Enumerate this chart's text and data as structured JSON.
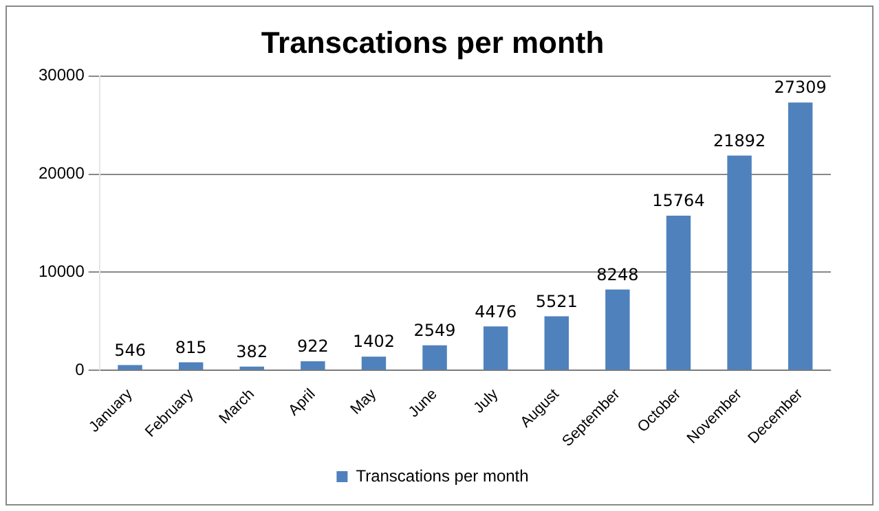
{
  "chart_data": {
    "type": "bar",
    "title": "Transcations per month",
    "categories": [
      "January",
      "February",
      "March",
      "April",
      "May",
      "June",
      "July",
      "August",
      "September",
      "October",
      "November",
      "December"
    ],
    "series": [
      {
        "name": "Transcations per month",
        "color": "#4f81bd",
        "values": [
          546,
          815,
          382,
          922,
          1402,
          2549,
          4476,
          5521,
          8248,
          15764,
          21892,
          27309
        ]
      }
    ],
    "ylim": [
      0,
      30000
    ],
    "yticks": [
      0,
      10000,
      20000,
      30000
    ],
    "grid": "y",
    "legend": "bottom",
    "data_labels": true
  }
}
